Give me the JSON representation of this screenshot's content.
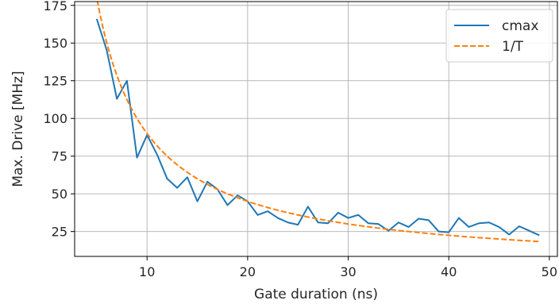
{
  "chart_data": {
    "type": "line",
    "xlabel": "Gate duration (ns)",
    "ylabel": "Max. Drive [MHz]",
    "xlim": [
      2.8,
      50.8
    ],
    "ylim": [
      8.5,
      177.5
    ],
    "xticks": [
      10,
      20,
      30,
      40,
      50
    ],
    "yticks": [
      25,
      50,
      75,
      100,
      125,
      150,
      175
    ],
    "grid": true,
    "legend_position": "top-right",
    "series": [
      {
        "name": "cmax",
        "style": "solid",
        "color": "#1f77b4",
        "x": [
          5,
          6,
          7,
          8,
          9,
          10,
          11,
          12,
          13,
          14,
          15,
          16,
          17,
          18,
          19,
          20,
          21,
          22,
          23,
          24,
          25,
          26,
          27,
          28,
          29,
          30,
          31,
          32,
          33,
          34,
          35,
          36,
          37,
          38,
          39,
          40,
          41,
          42,
          43,
          44,
          45,
          46,
          47,
          48,
          49
        ],
        "y": [
          166,
          145,
          113,
          125,
          74,
          89,
          76,
          60,
          54,
          61,
          45,
          58,
          53,
          42.5,
          49,
          45,
          36,
          38.5,
          34,
          31,
          29.5,
          41.5,
          31,
          30.5,
          37.5,
          34,
          36,
          30.5,
          30,
          25.5,
          31,
          28,
          33.5,
          32.5,
          25,
          24.5,
          34,
          28,
          30.5,
          31,
          28,
          23,
          28.5,
          25.5,
          22.5
        ]
      },
      {
        "name": "1/T",
        "style": "dashed",
        "color": "#ff7f0e",
        "function": "900/x",
        "x_range": [
          4.9,
          49
        ]
      }
    ]
  }
}
